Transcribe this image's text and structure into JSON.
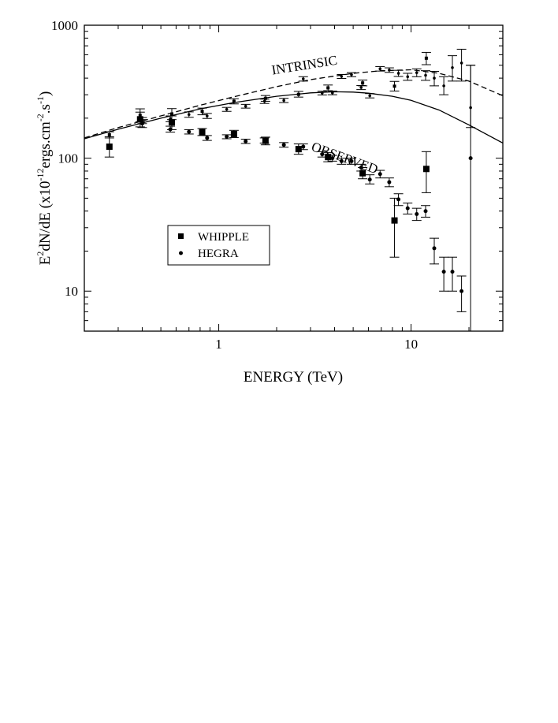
{
  "chart_data": {
    "type": "scatter",
    "xscale": "log",
    "yscale": "log",
    "xlim": [
      0.2,
      30
    ],
    "ylim": [
      5,
      1000
    ],
    "xlabel": "ENERGY (TeV)",
    "ylabel": {
      "parts": [
        "E",
        "2",
        "dN/dE (x10",
        "-12",
        "ergs.cm",
        "-2",
        ".s",
        "-1",
        ")"
      ]
    },
    "x_ticks": [
      {
        "value": 1,
        "label": "1"
      },
      {
        "value": 10,
        "label": "10"
      }
    ],
    "y_ticks": [
      {
        "value": 10,
        "label": "10"
      },
      {
        "value": 100,
        "label": "100"
      },
      {
        "value": 1000,
        "label": "1000"
      }
    ],
    "annotations": [
      {
        "text": "INTRINSIC",
        "x": 1.9,
        "y": 425,
        "rotate": -9
      },
      {
        "text": "OBSERVED",
        "x": 3.0,
        "y": 115,
        "rotate": 20
      }
    ],
    "legend": {
      "position": "lower-left",
      "entries": [
        {
          "label": "WHIPPLE",
          "marker": "square"
        },
        {
          "label": "HEGRA",
          "marker": "circle"
        }
      ]
    },
    "curves": [
      {
        "name": "intrinsic-fit-solid",
        "style": "solid",
        "points": [
          [
            0.2,
            140
          ],
          [
            0.3,
            165
          ],
          [
            0.5,
            200
          ],
          [
            0.8,
            235
          ],
          [
            1.2,
            262
          ],
          [
            2,
            292
          ],
          [
            3,
            310
          ],
          [
            4,
            316
          ],
          [
            5,
            314
          ],
          [
            6,
            308
          ],
          [
            8,
            292
          ],
          [
            10,
            272
          ],
          [
            14,
            230
          ],
          [
            20,
            178
          ],
          [
            30,
            130
          ]
        ]
      },
      {
        "name": "intrinsic-fit-dashed",
        "style": "dashed",
        "points": [
          [
            0.2,
            142
          ],
          [
            0.3,
            170
          ],
          [
            0.5,
            208
          ],
          [
            0.8,
            250
          ],
          [
            1.2,
            290
          ],
          [
            2,
            345
          ],
          [
            3,
            390
          ],
          [
            5,
            435
          ],
          [
            7,
            455
          ],
          [
            10,
            462
          ],
          [
            14,
            435
          ],
          [
            20,
            380
          ],
          [
            30,
            295
          ]
        ]
      }
    ],
    "series": [
      {
        "name": "WHIPPLE observed",
        "marker": "square",
        "points": [
          {
            "x": 0.27,
            "y": 122,
            "lo": 102,
            "hi": 145
          },
          {
            "x": 0.39,
            "y": 196,
            "lo": 172,
            "hi": 222
          },
          {
            "x": 0.57,
            "y": 186,
            "lo": 164,
            "hi": 208
          },
          {
            "x": 0.82,
            "y": 157,
            "lo": 148,
            "hi": 167
          },
          {
            "x": 1.2,
            "y": 152,
            "lo": 143,
            "hi": 162
          },
          {
            "x": 1.75,
            "y": 135,
            "lo": 126,
            "hi": 144
          },
          {
            "x": 2.6,
            "y": 117,
            "lo": 107,
            "hi": 128
          },
          {
            "x": 3.7,
            "y": 102,
            "lo": 94,
            "hi": 110
          },
          {
            "x": 5.6,
            "y": 77,
            "lo": 70,
            "hi": 85
          },
          {
            "x": 8.2,
            "y": 34,
            "lo": 18,
            "hi": 50
          },
          {
            "x": 12.0,
            "y": 83,
            "lo": 55,
            "hi": 112
          }
        ]
      },
      {
        "name": "HEGRA observed",
        "marker": "circle",
        "points": [
          {
            "x": 0.4,
            "y": 182,
            "lo": 170,
            "hi": 195
          },
          {
            "x": 0.56,
            "y": 165,
            "lo": 157,
            "hi": 174
          },
          {
            "x": 0.7,
            "y": 158,
            "lo": 152,
            "hi": 164
          },
          {
            "x": 0.87,
            "y": 142,
            "lo": 136,
            "hi": 148
          },
          {
            "x": 1.1,
            "y": 145,
            "lo": 140,
            "hi": 150
          },
          {
            "x": 1.38,
            "y": 134,
            "lo": 129,
            "hi": 139
          },
          {
            "x": 1.73,
            "y": 136,
            "lo": 130,
            "hi": 142
          },
          {
            "x": 2.18,
            "y": 126,
            "lo": 121,
            "hi": 131
          },
          {
            "x": 2.75,
            "y": 122,
            "lo": 116,
            "hi": 128
          },
          {
            "x": 3.45,
            "y": 107,
            "lo": 102,
            "hi": 112
          },
          {
            "x": 3.9,
            "y": 100,
            "lo": 95,
            "hi": 105
          },
          {
            "x": 4.35,
            "y": 95,
            "lo": 90,
            "hi": 100
          },
          {
            "x": 4.9,
            "y": 95,
            "lo": 90,
            "hi": 100
          },
          {
            "x": 5.5,
            "y": 85,
            "lo": 80,
            "hi": 90
          },
          {
            "x": 6.1,
            "y": 69,
            "lo": 64,
            "hi": 75
          },
          {
            "x": 6.9,
            "y": 76,
            "lo": 71,
            "hi": 81
          },
          {
            "x": 7.7,
            "y": 66,
            "lo": 61,
            "hi": 71
          },
          {
            "x": 8.6,
            "y": 49,
            "lo": 44,
            "hi": 54
          },
          {
            "x": 9.6,
            "y": 42,
            "lo": 38,
            "hi": 46
          },
          {
            "x": 10.7,
            "y": 38,
            "lo": 34,
            "hi": 42
          },
          {
            "x": 11.9,
            "y": 40,
            "lo": 36,
            "hi": 44
          },
          {
            "x": 13.2,
            "y": 21,
            "lo": 16,
            "hi": 25
          },
          {
            "x": 14.8,
            "y": 14,
            "lo": 10,
            "hi": 18
          },
          {
            "x": 16.4,
            "y": 14,
            "lo": 10,
            "hi": 18
          },
          {
            "x": 18.3,
            "y": 10,
            "lo": 7,
            "hi": 13
          },
          {
            "x": 20.4,
            "y": 100,
            "lo": 5,
            "hi": 500
          }
        ]
      },
      {
        "name": "WHIPPLE intrinsic",
        "marker": "square-small",
        "points": [
          {
            "x": 0.27,
            "y": 150,
            "lo": 142,
            "hi": 158
          },
          {
            "x": 0.39,
            "y": 210,
            "lo": 188,
            "hi": 235
          },
          {
            "x": 0.57,
            "y": 215,
            "lo": 195,
            "hi": 236
          },
          {
            "x": 0.82,
            "y": 225,
            "lo": 212,
            "hi": 238
          },
          {
            "x": 1.2,
            "y": 268,
            "lo": 256,
            "hi": 280
          },
          {
            "x": 1.75,
            "y": 282,
            "lo": 268,
            "hi": 296
          },
          {
            "x": 2.6,
            "y": 302,
            "lo": 288,
            "hi": 318
          },
          {
            "x": 3.7,
            "y": 338,
            "lo": 322,
            "hi": 355
          },
          {
            "x": 5.6,
            "y": 368,
            "lo": 350,
            "hi": 387
          },
          {
            "x": 8.2,
            "y": 348,
            "lo": 320,
            "hi": 378
          },
          {
            "x": 12.0,
            "y": 565,
            "lo": 505,
            "hi": 625
          }
        ]
      },
      {
        "name": "HEGRA intrinsic",
        "marker": "circle-small",
        "points": [
          {
            "x": 0.4,
            "y": 192,
            "lo": 182,
            "hi": 202
          },
          {
            "x": 0.56,
            "y": 198,
            "lo": 188,
            "hi": 208
          },
          {
            "x": 0.7,
            "y": 213,
            "lo": 203,
            "hi": 223
          },
          {
            "x": 0.87,
            "y": 208,
            "lo": 199,
            "hi": 217
          },
          {
            "x": 1.1,
            "y": 233,
            "lo": 225,
            "hi": 241
          },
          {
            "x": 1.38,
            "y": 246,
            "lo": 238,
            "hi": 254
          },
          {
            "x": 1.73,
            "y": 268,
            "lo": 258,
            "hi": 278
          },
          {
            "x": 2.18,
            "y": 272,
            "lo": 262,
            "hi": 282
          },
          {
            "x": 2.75,
            "y": 395,
            "lo": 380,
            "hi": 410
          },
          {
            "x": 3.45,
            "y": 309,
            "lo": 299,
            "hi": 319
          },
          {
            "x": 3.9,
            "y": 310,
            "lo": 300,
            "hi": 320
          },
          {
            "x": 4.35,
            "y": 412,
            "lo": 398,
            "hi": 426
          },
          {
            "x": 4.9,
            "y": 425,
            "lo": 410,
            "hi": 440
          },
          {
            "x": 5.5,
            "y": 340,
            "lo": 328,
            "hi": 352
          },
          {
            "x": 6.1,
            "y": 295,
            "lo": 284,
            "hi": 306
          },
          {
            "x": 6.9,
            "y": 470,
            "lo": 452,
            "hi": 488
          },
          {
            "x": 7.7,
            "y": 460,
            "lo": 442,
            "hi": 478
          },
          {
            "x": 8.6,
            "y": 435,
            "lo": 412,
            "hi": 458
          },
          {
            "x": 9.6,
            "y": 410,
            "lo": 385,
            "hi": 435
          },
          {
            "x": 10.7,
            "y": 440,
            "lo": 410,
            "hi": 470
          },
          {
            "x": 11.9,
            "y": 420,
            "lo": 385,
            "hi": 455
          },
          {
            "x": 13.2,
            "y": 400,
            "lo": 350,
            "hi": 450
          },
          {
            "x": 14.8,
            "y": 350,
            "lo": 300,
            "hi": 410
          },
          {
            "x": 16.4,
            "y": 480,
            "lo": 380,
            "hi": 590
          },
          {
            "x": 18.3,
            "y": 520,
            "lo": 380,
            "hi": 660
          },
          {
            "x": 20.4,
            "y": 240,
            "lo": 170,
            "hi": 500
          }
        ]
      }
    ]
  }
}
